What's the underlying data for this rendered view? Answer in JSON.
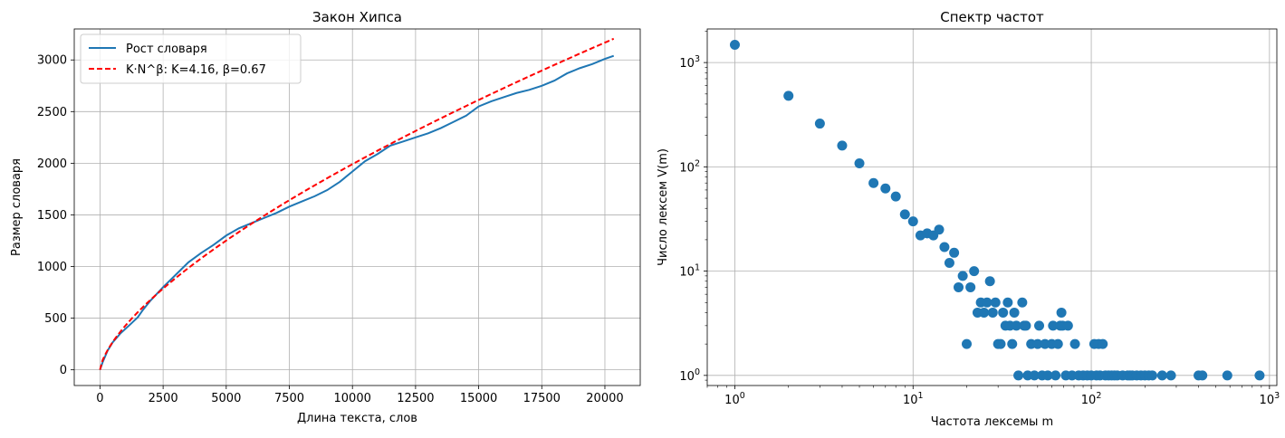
{
  "chart_data": [
    {
      "type": "line",
      "title": "Закон Хипса",
      "xlabel": "Длина текста, слов",
      "ylabel": "Размер словаря",
      "xlim": [
        -1020,
        21400
      ],
      "ylim": [
        -152,
        3300
      ],
      "xticks": [
        0,
        2500,
        5000,
        7500,
        10000,
        12500,
        15000,
        17500,
        20000
      ],
      "yticks": [
        0,
        500,
        1000,
        1500,
        2000,
        2500,
        3000
      ],
      "grid": true,
      "legend": "top-left",
      "series": [
        {
          "name": "Рост словаря",
          "style": "solid",
          "color": "#1f77b4",
          "points": [
            [
              0,
              0
            ],
            [
              100,
              70
            ],
            [
              300,
              185
            ],
            [
              500,
              265
            ],
            [
              800,
              350
            ],
            [
              1200,
              440
            ],
            [
              1500,
              510
            ],
            [
              1700,
              580
            ],
            [
              2000,
              670
            ],
            [
              2500,
              800
            ],
            [
              3000,
              920
            ],
            [
              3500,
              1040
            ],
            [
              4000,
              1130
            ],
            [
              4500,
              1210
            ],
            [
              5000,
              1300
            ],
            [
              5500,
              1370
            ],
            [
              6000,
              1420
            ],
            [
              6500,
              1470
            ],
            [
              7000,
              1520
            ],
            [
              7500,
              1580
            ],
            [
              8000,
              1630
            ],
            [
              8500,
              1680
            ],
            [
              9000,
              1740
            ],
            [
              9500,
              1820
            ],
            [
              10000,
              1920
            ],
            [
              10500,
              2020
            ],
            [
              11000,
              2090
            ],
            [
              11500,
              2170
            ],
            [
              12000,
              2210
            ],
            [
              12500,
              2250
            ],
            [
              13000,
              2290
            ],
            [
              13500,
              2340
            ],
            [
              14000,
              2400
            ],
            [
              14500,
              2460
            ],
            [
              15000,
              2550
            ],
            [
              15500,
              2600
            ],
            [
              16000,
              2640
            ],
            [
              16500,
              2680
            ],
            [
              17000,
              2710
            ],
            [
              17500,
              2750
            ],
            [
              18000,
              2800
            ],
            [
              18500,
              2870
            ],
            [
              19000,
              2920
            ],
            [
              19500,
              2960
            ],
            [
              20000,
              3010
            ],
            [
              20350,
              3040
            ]
          ]
        },
        {
          "name": "K·N^β: K=4.16, β=0.67",
          "style": "dashed",
          "color": "#ff0000",
          "fit": {
            "K": 4.16,
            "beta": 0.67,
            "x_range": [
              0,
              20350
            ]
          }
        }
      ]
    },
    {
      "type": "scatter",
      "title": "Спектр частот",
      "xlabel": "Частота лексемы m",
      "ylabel": "Число лексем V(m)",
      "xscale": "log",
      "yscale": "log",
      "xlim": [
        0.7,
        1100
      ],
      "ylim": [
        0.8,
        2100
      ],
      "xticks": [
        1,
        10,
        100,
        1000
      ],
      "yticks": [
        1,
        10,
        100,
        1000
      ],
      "tick_exponents": [
        "0",
        "1",
        "2",
        "3"
      ],
      "tick_base": "10",
      "grid": true,
      "color": "#1f77b4",
      "points": [
        [
          1,
          1480
        ],
        [
          2,
          480
        ],
        [
          3,
          260
        ],
        [
          4,
          160
        ],
        [
          5,
          108
        ],
        [
          6,
          70
        ],
        [
          7,
          62
        ],
        [
          8,
          52
        ],
        [
          9,
          35
        ],
        [
          10,
          30
        ],
        [
          11,
          22
        ],
        [
          12,
          23
        ],
        [
          13,
          22
        ],
        [
          14,
          25
        ],
        [
          15,
          17
        ],
        [
          16,
          12
        ],
        [
          17,
          15
        ],
        [
          18,
          7
        ],
        [
          19,
          9
        ],
        [
          20,
          2
        ],
        [
          21,
          7
        ],
        [
          22,
          10
        ],
        [
          23,
          4
        ],
        [
          24,
          5
        ],
        [
          25,
          4
        ],
        [
          26,
          5
        ],
        [
          27,
          8
        ],
        [
          28,
          4
        ],
        [
          29,
          5
        ],
        [
          30,
          2
        ],
        [
          31,
          2
        ],
        [
          32,
          4
        ],
        [
          33,
          3
        ],
        [
          34,
          5
        ],
        [
          35,
          3
        ],
        [
          36,
          2
        ],
        [
          37,
          4
        ],
        [
          38,
          3
        ],
        [
          39,
          1
        ],
        [
          41,
          5
        ],
        [
          42,
          3
        ],
        [
          43,
          3
        ],
        [
          44,
          1
        ],
        [
          46,
          2
        ],
        [
          48,
          1
        ],
        [
          50,
          2
        ],
        [
          51,
          3
        ],
        [
          53,
          1
        ],
        [
          55,
          2
        ],
        [
          57,
          1
        ],
        [
          60,
          2
        ],
        [
          61,
          3
        ],
        [
          63,
          1
        ],
        [
          65,
          2
        ],
        [
          67,
          3
        ],
        [
          68,
          4
        ],
        [
          69,
          3
        ],
        [
          72,
          1
        ],
        [
          74,
          3
        ],
        [
          78,
          1
        ],
        [
          81,
          2
        ],
        [
          85,
          1
        ],
        [
          90,
          1
        ],
        [
          95,
          1
        ],
        [
          100,
          1
        ],
        [
          104,
          2
        ],
        [
          107,
          1
        ],
        [
          110,
          2
        ],
        [
          112,
          1
        ],
        [
          116,
          2
        ],
        [
          120,
          1
        ],
        [
          125,
          1
        ],
        [
          130,
          1
        ],
        [
          135,
          1
        ],
        [
          140,
          1
        ],
        [
          150,
          1
        ],
        [
          160,
          1
        ],
        [
          165,
          1
        ],
        [
          170,
          1
        ],
        [
          180,
          1
        ],
        [
          190,
          1
        ],
        [
          200,
          1
        ],
        [
          210,
          1
        ],
        [
          220,
          1
        ],
        [
          250,
          1
        ],
        [
          280,
          1
        ],
        [
          400,
          1
        ],
        [
          420,
          1
        ],
        [
          580,
          1
        ],
        [
          880,
          1
        ]
      ]
    }
  ]
}
